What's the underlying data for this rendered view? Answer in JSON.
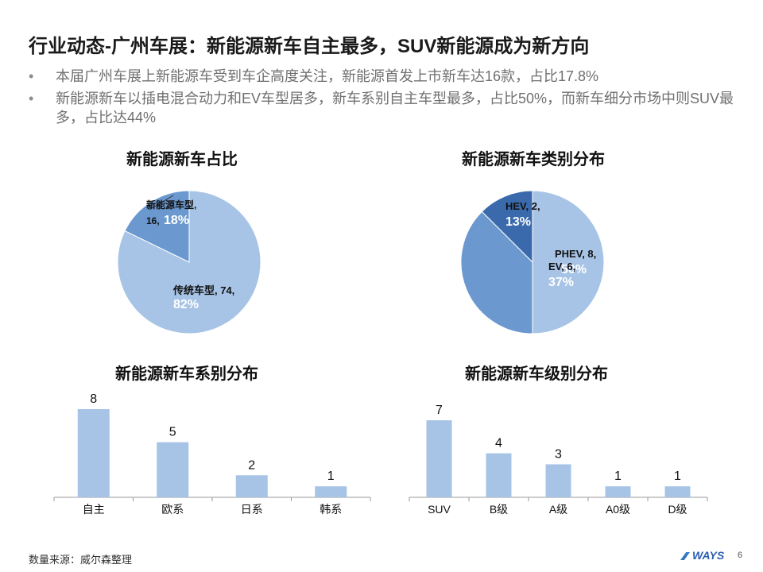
{
  "header": {
    "title": "行业动态-广州车展：新能源新车自主最多，SUV新能源成为新方向"
  },
  "bullets": [
    "本届广州车展上新能源车受到车企高度关注，新能源首发上市新车达16款，占比17.8%",
    "新能源新车以插电混合动力和EV车型居多，新车系别自主车型最多，占比50%，而新车细分市场中则SUV最多，占比达44%"
  ],
  "colors": {
    "light_blue": "#a7c4e6",
    "mid_blue": "#6a98cf",
    "dark_blue": "#3a6aac",
    "bar": "#a7c4e6"
  },
  "chart_data": [
    {
      "type": "pie",
      "title": "新能源新车占比",
      "slices": [
        {
          "name": "传统车型",
          "value": 74,
          "percent": "82%"
        },
        {
          "name": "新能源车型",
          "value": 16,
          "percent": "18%"
        }
      ]
    },
    {
      "type": "pie",
      "title": "新能源新车类别分布",
      "slices": [
        {
          "name": "PHEV",
          "value": 8,
          "percent": "50%"
        },
        {
          "name": "EV",
          "value": 6,
          "percent": "37%"
        },
        {
          "name": "HEV",
          "value": 2,
          "percent": "13%"
        }
      ]
    },
    {
      "type": "bar",
      "title": "新能源新车系别分布",
      "categories": [
        "自主",
        "欧系",
        "日系",
        "韩系"
      ],
      "values": [
        8,
        5,
        2,
        1
      ],
      "ylim": [
        0,
        8
      ]
    },
    {
      "type": "bar",
      "title": "新能源新车级别分布",
      "categories": [
        "SUV",
        "B级",
        "A级",
        "A0级",
        "D级"
      ],
      "values": [
        7,
        4,
        3,
        1,
        1
      ],
      "ylim": [
        0,
        7
      ]
    }
  ],
  "footer": {
    "source": "数量来源：威尔森整理",
    "logo": "WAYS",
    "page": "6"
  }
}
